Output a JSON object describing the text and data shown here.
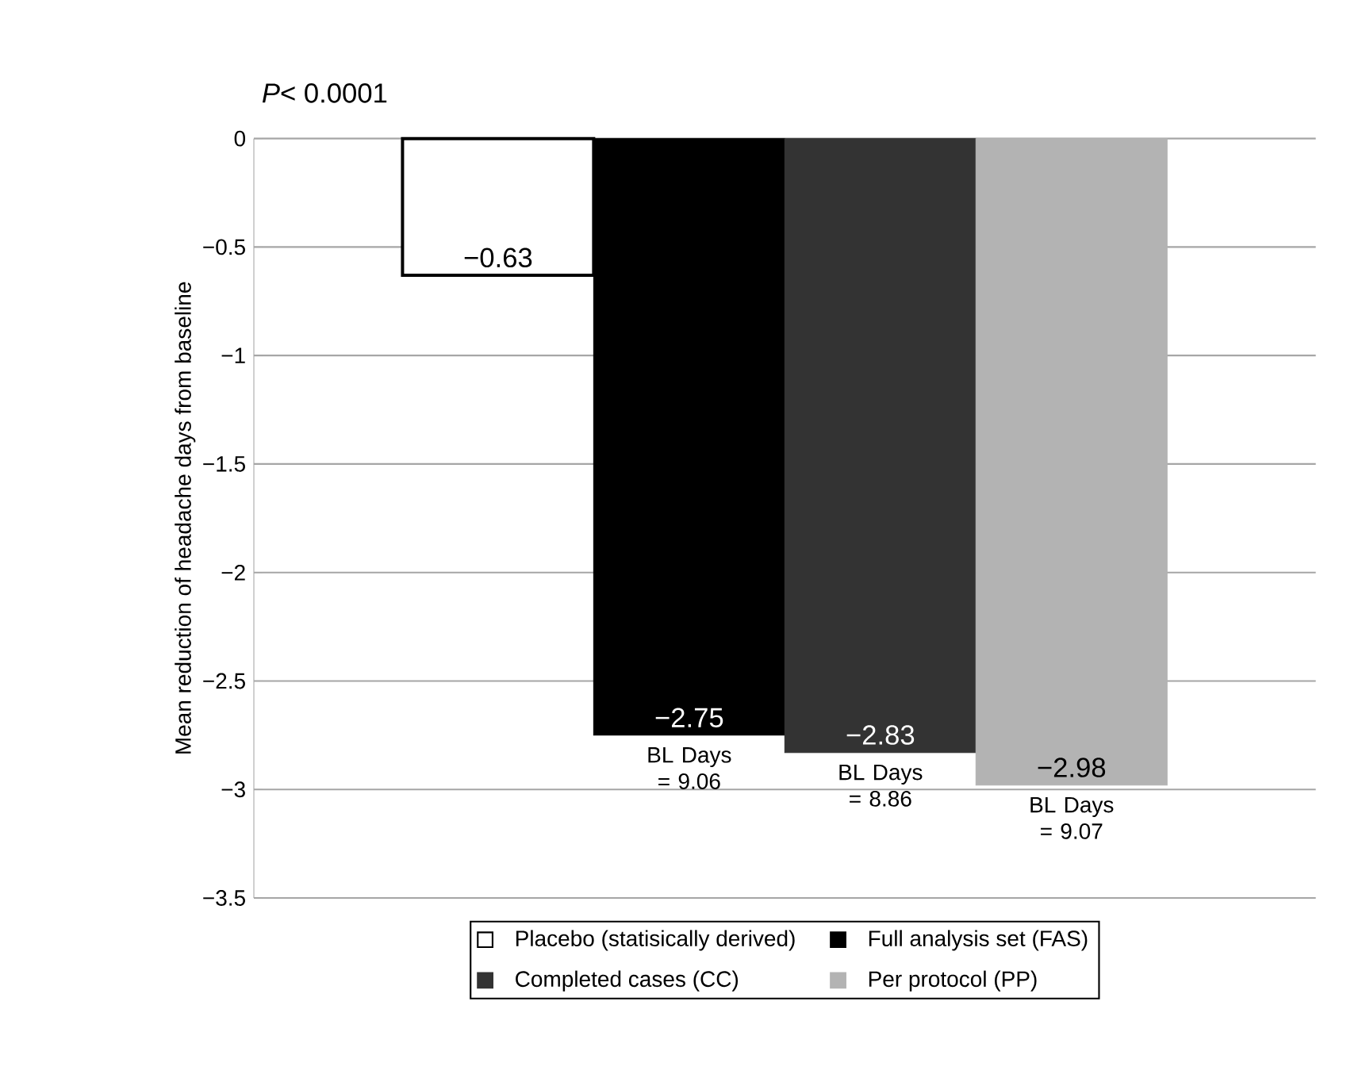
{
  "chart_data": {
    "type": "bar",
    "title": "*P*< 0.0001",
    "ylabel": "Mean reduction of headache days from baseline",
    "categories": [
      null
    ],
    "series": [
      {
        "name": "Placebo (statisically derived)",
        "color": "#ffffff",
        "values": [
          -0.63
        ],
        "value_labels": [
          "−0.63"
        ]
      },
      {
        "name": "Full analysis set (FAS)",
        "color": "#000000",
        "values": [
          -2.75
        ],
        "value_labels": [
          "−2.75"
        ]
      },
      {
        "name": "Completed cases (CC)",
        "color": "#333333",
        "values": [
          -2.83
        ],
        "value_labels": [
          "−2.83"
        ]
      },
      {
        "name": "Per protocol (PP)",
        "color": "#b3b3b3",
        "values": [
          -2.98
        ],
        "value_labels": [
          "−2.98"
        ]
      }
    ],
    "annotations": [
      "BL Days = 9.06",
      "BL Days = 8.86",
      "BL Days = 9.07"
    ],
    "ylim": [
      -3.5,
      0
    ],
    "yticks": [
      {
        "value": -3.5,
        "label": "−3.5"
      },
      {
        "value": -3,
        "label": "−3"
      },
      {
        "value": -2.5,
        "label": "−2.5"
      },
      {
        "value": -2,
        "label": "−2"
      },
      {
        "value": -1.5,
        "label": "−1.5"
      },
      {
        "value": -1,
        "label": "−1"
      },
      {
        "value": -0.5,
        "label": "−0.5"
      },
      0
    ],
    "grid": "y",
    "legend": "bottom"
  }
}
